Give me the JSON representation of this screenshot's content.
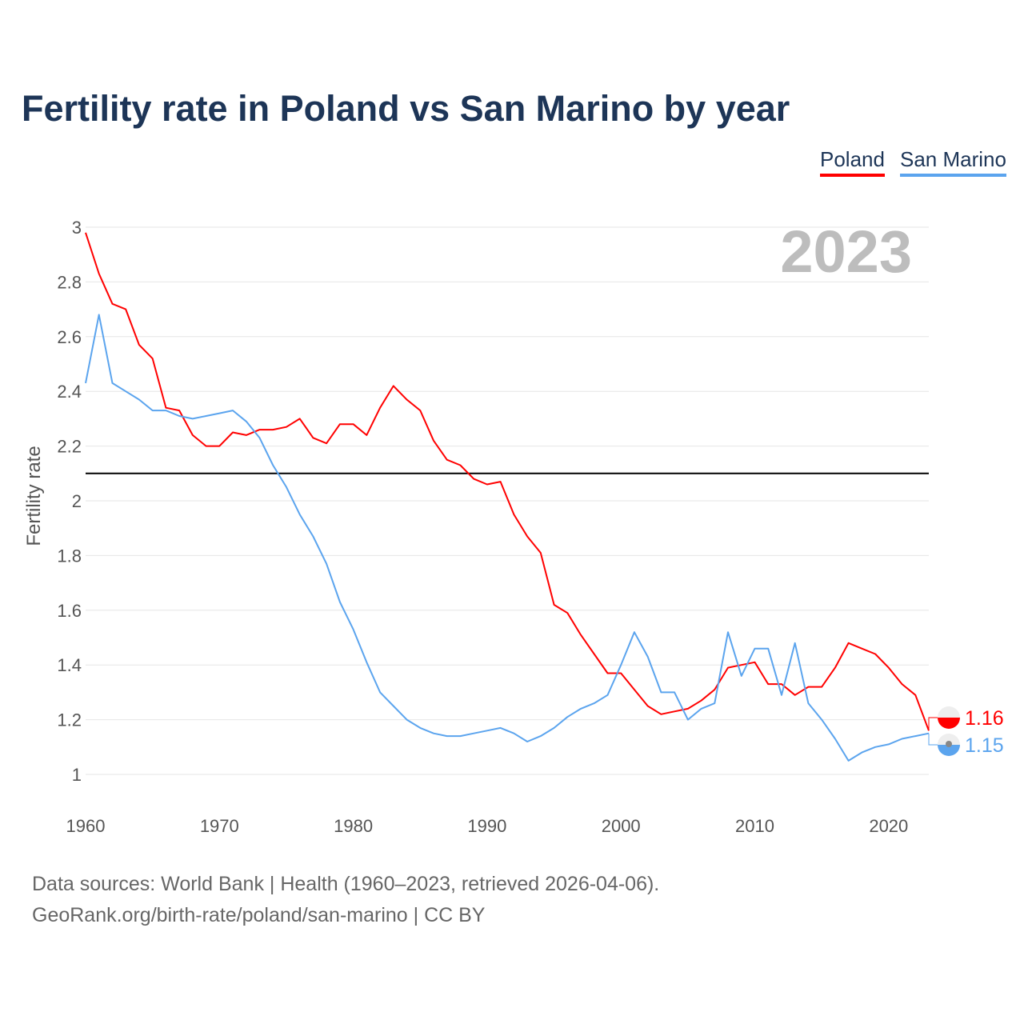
{
  "chart_data": {
    "type": "line",
    "title": "Fertility rate in Poland vs San Marino by year",
    "xlabel": "",
    "ylabel": "Fertility rate",
    "xlim": [
      1960,
      2023
    ],
    "ylim": [
      1,
      3
    ],
    "x_ticks": [
      "1960",
      "1970",
      "1980",
      "1990",
      "2000",
      "2010",
      "2020"
    ],
    "y_ticks": [
      "1",
      "1.2",
      "1.4",
      "1.6",
      "1.8",
      "2",
      "2.2",
      "2.4",
      "2.6",
      "2.8",
      "3"
    ],
    "grid": true,
    "legend_position": "top-right",
    "year_label": "2023",
    "reference_line": 2.1,
    "x": [
      1960,
      1961,
      1962,
      1963,
      1964,
      1965,
      1966,
      1967,
      1968,
      1969,
      1970,
      1971,
      1972,
      1973,
      1974,
      1975,
      1976,
      1977,
      1978,
      1979,
      1980,
      1981,
      1982,
      1983,
      1984,
      1985,
      1986,
      1987,
      1988,
      1989,
      1990,
      1991,
      1992,
      1993,
      1994,
      1995,
      1996,
      1997,
      1998,
      1999,
      2000,
      2001,
      2002,
      2003,
      2004,
      2005,
      2006,
      2007,
      2008,
      2009,
      2010,
      2011,
      2012,
      2013,
      2014,
      2015,
      2016,
      2017,
      2018,
      2019,
      2020,
      2021,
      2022,
      2023
    ],
    "series": [
      {
        "name": "Poland",
        "color": "#ff0000",
        "end_label": "1.16",
        "values": [
          2.98,
          2.83,
          2.72,
          2.7,
          2.57,
          2.52,
          2.34,
          2.33,
          2.24,
          2.2,
          2.2,
          2.25,
          2.24,
          2.26,
          2.26,
          2.27,
          2.3,
          2.23,
          2.21,
          2.28,
          2.28,
          2.24,
          2.34,
          2.42,
          2.37,
          2.33,
          2.22,
          2.15,
          2.13,
          2.08,
          2.06,
          2.07,
          1.95,
          1.87,
          1.81,
          1.62,
          1.59,
          1.51,
          1.44,
          1.37,
          1.37,
          1.31,
          1.25,
          1.22,
          1.23,
          1.24,
          1.27,
          1.31,
          1.39,
          1.4,
          1.41,
          1.33,
          1.33,
          1.29,
          1.32,
          1.32,
          1.39,
          1.48,
          1.46,
          1.44,
          1.39,
          1.33,
          1.29,
          1.16
        ]
      },
      {
        "name": "San Marino",
        "color": "#5ba4ee",
        "end_label": "1.15",
        "values": [
          2.43,
          2.68,
          2.43,
          2.4,
          2.37,
          2.33,
          2.33,
          2.31,
          2.3,
          2.31,
          2.32,
          2.33,
          2.29,
          2.23,
          2.13,
          2.05,
          1.95,
          1.87,
          1.77,
          1.63,
          1.53,
          1.41,
          1.3,
          1.25,
          1.2,
          1.17,
          1.15,
          1.14,
          1.14,
          1.15,
          1.16,
          1.17,
          1.15,
          1.12,
          1.14,
          1.17,
          1.21,
          1.24,
          1.26,
          1.29,
          1.4,
          1.52,
          1.43,
          1.3,
          1.3,
          1.2,
          1.24,
          1.26,
          1.52,
          1.36,
          1.46,
          1.46,
          1.29,
          1.48,
          1.26,
          1.2,
          1.13,
          1.05,
          1.08,
          1.1,
          1.11,
          1.13,
          1.14,
          1.15
        ]
      }
    ]
  },
  "footer": {
    "line1": "Data sources: World Bank | Health (1960–2023, retrieved 2026-04-06).",
    "line2": "GeoRank.org/birth-rate/poland/san-marino | CC BY"
  }
}
